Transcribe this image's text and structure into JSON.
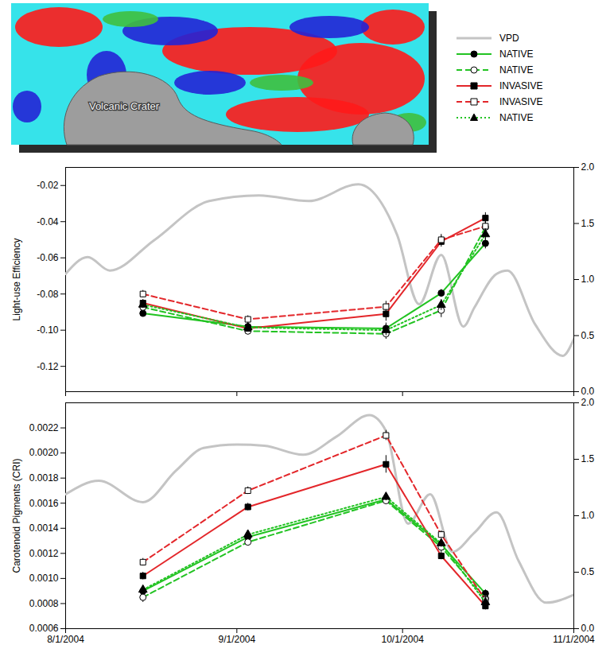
{
  "image": {
    "label": "Volcanic Crater"
  },
  "chart_data": [
    {
      "type": "line",
      "ylabel": "Light-use Efficiency",
      "x": [
        "2004-08-15",
        "2004-09-03",
        "2004-09-28",
        "2004-10-08",
        "2004-10-16"
      ],
      "xlim": [
        "2004-08-01",
        "2004-11-01"
      ],
      "xticks": [
        {
          "value": "2004-08-01",
          "label": "8/1/2004"
        },
        {
          "value": "2004-09-01",
          "label": "9/1/2004"
        },
        {
          "value": "2004-10-01",
          "label": "10/1/2004"
        },
        {
          "value": "2004-11-01",
          "label": "11/1/2004"
        }
      ],
      "ylim": [
        -0.134,
        -0.01
      ],
      "yticks": [
        -0.12,
        {
          "value": -0.1,
          "label": "-0.10"
        },
        -0.08,
        -0.06,
        -0.04,
        -0.02
      ],
      "y2lim": [
        0,
        2
      ],
      "y2ticks": [
        {
          "value": 0,
          "label": "0.0"
        },
        0.5,
        {
          "value": 1,
          "label": "1.0"
        },
        1.5,
        {
          "value": 2,
          "label": "2.0"
        }
      ],
      "tick_labels": "y",
      "series": [
        {
          "name": "VPD",
          "color": "#c4c4c4",
          "line_style": "solid",
          "axis": "y2",
          "x": [
            "2004-08-01",
            "2004-08-05",
            "2004-08-09",
            "2004-08-17",
            "2004-08-27",
            "2004-09-05",
            "2004-09-14",
            "2004-09-23",
            "2004-09-30",
            "2004-10-04",
            "2004-10-08",
            "2004-10-12",
            "2004-10-14",
            "2004-10-18",
            "2004-10-20",
            "2004-10-25",
            "2004-10-30",
            "2004-11-01"
          ],
          "values": [
            1.05,
            1.2,
            1.08,
            1.35,
            1.7,
            1.75,
            1.7,
            1.85,
            1.4,
            0.78,
            1.22,
            0.58,
            0.75,
            1.05,
            1.08,
            0.6,
            0.32,
            0.47
          ]
        },
        {
          "name": "NATIVE",
          "color": "#22c322",
          "marker": "circle",
          "line_style": "solid",
          "values": [
            -0.0907,
            -0.098,
            -0.099,
            -0.0795,
            -0.052
          ],
          "errors": [
            0.002,
            0.002,
            0.003,
            0.002,
            0.003
          ]
        },
        {
          "name": "NATIVE",
          "color": "#22c322",
          "marker": "circle-open",
          "line_style": "dashed",
          "values": [
            -0.0873,
            -0.1005,
            -0.102,
            -0.089,
            -0.043
          ],
          "errors": [
            0.002,
            0.002,
            0.003,
            0.004,
            0.003
          ]
        },
        {
          "name": "INVASIVE",
          "color": "#e3262a",
          "marker": "square",
          "line_style": "solid",
          "values": [
            -0.085,
            -0.099,
            -0.091,
            -0.051,
            -0.038
          ],
          "errors": [
            0.002,
            0.002,
            0.004,
            0.003,
            0.003
          ]
        },
        {
          "name": "INVASIVE",
          "color": "#e3262a",
          "marker": "square-open",
          "line_style": "dashed",
          "values": [
            -0.08,
            -0.094,
            -0.087,
            -0.05,
            -0.0425
          ],
          "errors": [
            0.002,
            0.002,
            0.003,
            0.003,
            0.003
          ]
        },
        {
          "name": "NATIVE",
          "color": "#22c322",
          "marker": "triangle",
          "line_style": "dotted",
          "values": [
            -0.0859,
            -0.0985,
            -0.1,
            -0.086,
            -0.047
          ],
          "errors": [
            0.002,
            0.002,
            0.003,
            0.003,
            0.003
          ]
        }
      ]
    },
    {
      "type": "line",
      "ylabel": "Carotenoid Pigments (CRI)",
      "x": [
        "2004-08-15",
        "2004-09-03",
        "2004-09-28",
        "2004-10-08",
        "2004-10-16"
      ],
      "xlim": [
        "2004-08-01",
        "2004-11-01"
      ],
      "xticks": [
        {
          "value": "2004-08-01",
          "label": "8/1/2004"
        },
        {
          "value": "2004-09-01",
          "label": "9/1/2004"
        },
        {
          "value": "2004-10-01",
          "label": "10/1/2004"
        },
        {
          "value": "2004-11-01",
          "label": "11/1/2004"
        }
      ],
      "ylim": [
        0.0006,
        0.0024
      ],
      "yticks": [
        0.0006,
        0.0008,
        {
          "value": 0.001,
          "label": "0.0010"
        },
        0.0012,
        0.0014,
        0.0016,
        0.0018,
        {
          "value": 0.002,
          "label": "0.0020"
        },
        0.0022
      ],
      "y2lim": [
        0,
        2
      ],
      "y2ticks": [
        {
          "value": 0,
          "label": "0.0"
        },
        0.5,
        {
          "value": 1,
          "label": "1.0"
        },
        1.5,
        {
          "value": 2,
          "label": "2.0"
        }
      ],
      "legend": "top-right",
      "series": [
        {
          "name": "VPD",
          "color": "#c4c4c4",
          "line_style": "solid",
          "axis": "y2",
          "x": [
            "2004-08-01",
            "2004-08-07",
            "2004-08-15",
            "2004-08-21",
            "2004-08-26",
            "2004-09-01",
            "2004-09-06",
            "2004-09-13",
            "2004-09-19",
            "2004-09-25",
            "2004-09-28",
            "2004-10-02",
            "2004-10-06",
            "2004-10-10",
            "2004-10-14",
            "2004-10-18",
            "2004-10-22",
            "2004-10-27",
            "2004-11-01"
          ],
          "values": [
            1.19,
            1.31,
            1.12,
            1.4,
            1.6,
            1.63,
            1.62,
            1.54,
            1.7,
            1.89,
            1.75,
            0.93,
            1.19,
            0.68,
            0.85,
            1.03,
            0.6,
            0.23,
            0.3
          ]
        },
        {
          "name": "NATIVE",
          "color": "#22c322",
          "marker": "circle",
          "line_style": "solid",
          "values": [
            0.0009,
            0.00133,
            0.00163,
            0.00127,
            0.00088
          ],
          "errors": [
            3e-05,
            3e-05,
            4e-05,
            3e-05,
            3e-05
          ]
        },
        {
          "name": "NATIVE",
          "color": "#22c322",
          "marker": "circle-open",
          "line_style": "dashed",
          "values": [
            0.00085,
            0.00129,
            0.00162,
            0.00125,
            0.00084
          ],
          "errors": [
            4e-05,
            3e-05,
            3e-05,
            4e-05,
            3e-05
          ]
        },
        {
          "name": "INVASIVE",
          "color": "#e3262a",
          "marker": "square",
          "line_style": "solid",
          "values": [
            0.00102,
            0.00157,
            0.00191,
            0.00118,
            0.00078
          ],
          "errors": [
            3e-05,
            3e-05,
            7e-05,
            3e-05,
            3e-05
          ]
        },
        {
          "name": "INVASIVE",
          "color": "#e3262a",
          "marker": "square-open",
          "line_style": "dashed",
          "values": [
            0.00113,
            0.0017,
            0.00214,
            0.00135,
            0.00083
          ],
          "errors": [
            3e-05,
            3e-05,
            4e-05,
            3e-05,
            3e-05
          ]
        },
        {
          "name": "NATIVE",
          "color": "#22c322",
          "marker": "triangle",
          "line_style": "dotted",
          "values": [
            0.00091,
            0.00135,
            0.00165,
            0.00128,
            0.00081
          ],
          "errors": [
            2e-05,
            2e-05,
            3e-05,
            3e-05,
            2e-05
          ]
        }
      ]
    }
  ]
}
